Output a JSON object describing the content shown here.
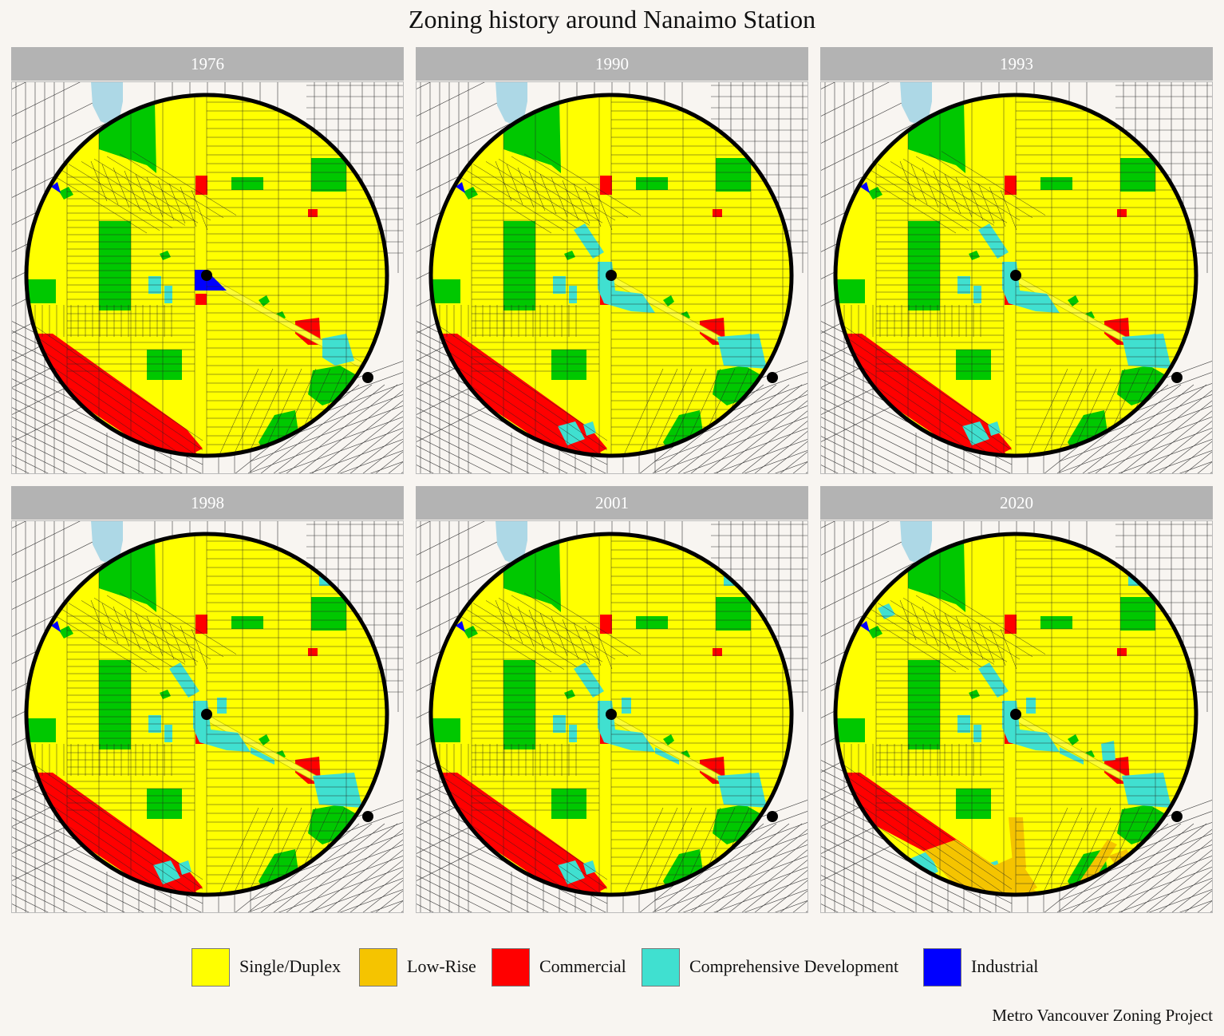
{
  "title": "Zoning history around Nanaimo Station",
  "caption": "Metro Vancouver Zoning Project",
  "colors": {
    "single_duplex": "#ffff00",
    "low_rise": "#f5c400",
    "commercial": "#ff0000",
    "comprehensive": "#40e0d0",
    "industrial": "#0000ff",
    "park": "#00c800",
    "water": "#add8e6",
    "background": "#f8f5f1"
  },
  "legend": [
    {
      "label": "Single/Duplex",
      "color": "#ffff00"
    },
    {
      "label": "Low-Rise",
      "color": "#f5c400"
    },
    {
      "label": "Commercial",
      "color": "#ff0000"
    },
    {
      "label": "Comprehensive Development",
      "color": "#40e0d0"
    },
    {
      "label": "Industrial",
      "color": "#0000ff"
    }
  ],
  "panels": [
    {
      "year": "1976",
      "cd_level": 0,
      "industrial_station": true,
      "low_rise": false
    },
    {
      "year": "1990",
      "cd_level": 1,
      "industrial_station": false,
      "low_rise": false
    },
    {
      "year": "1993",
      "cd_level": 1,
      "industrial_station": false,
      "low_rise": false
    },
    {
      "year": "1998",
      "cd_level": 2,
      "industrial_station": false,
      "low_rise": false
    },
    {
      "year": "2001",
      "cd_level": 2,
      "industrial_station": false,
      "low_rise": false
    },
    {
      "year": "2020",
      "cd_level": 3,
      "industrial_station": false,
      "low_rise": true
    }
  ]
}
